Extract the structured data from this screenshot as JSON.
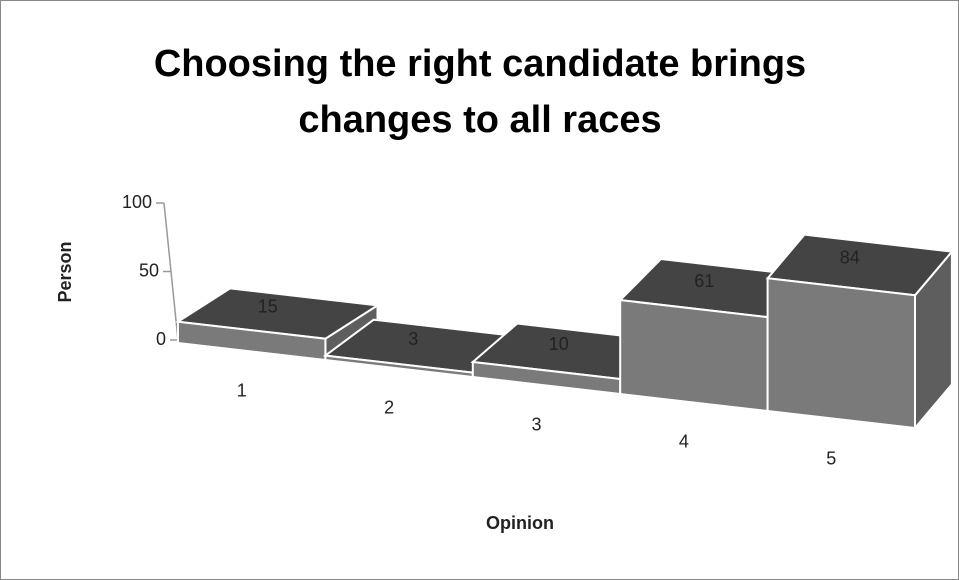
{
  "chart_data": {
    "type": "bar3d",
    "title": "Choosing the right candidate brings changes to all races",
    "x_label": "Opinion",
    "y_label": "Person",
    "categories": [
      "1",
      "2",
      "3",
      "4",
      "5"
    ],
    "values": [
      15,
      3,
      10,
      61,
      84
    ],
    "ylim": [
      0,
      100
    ],
    "yticks": [
      0,
      50,
      100
    ],
    "colors": {
      "front": "#7a7a7a",
      "top": "#444444",
      "side": "#5e5e5e"
    }
  }
}
